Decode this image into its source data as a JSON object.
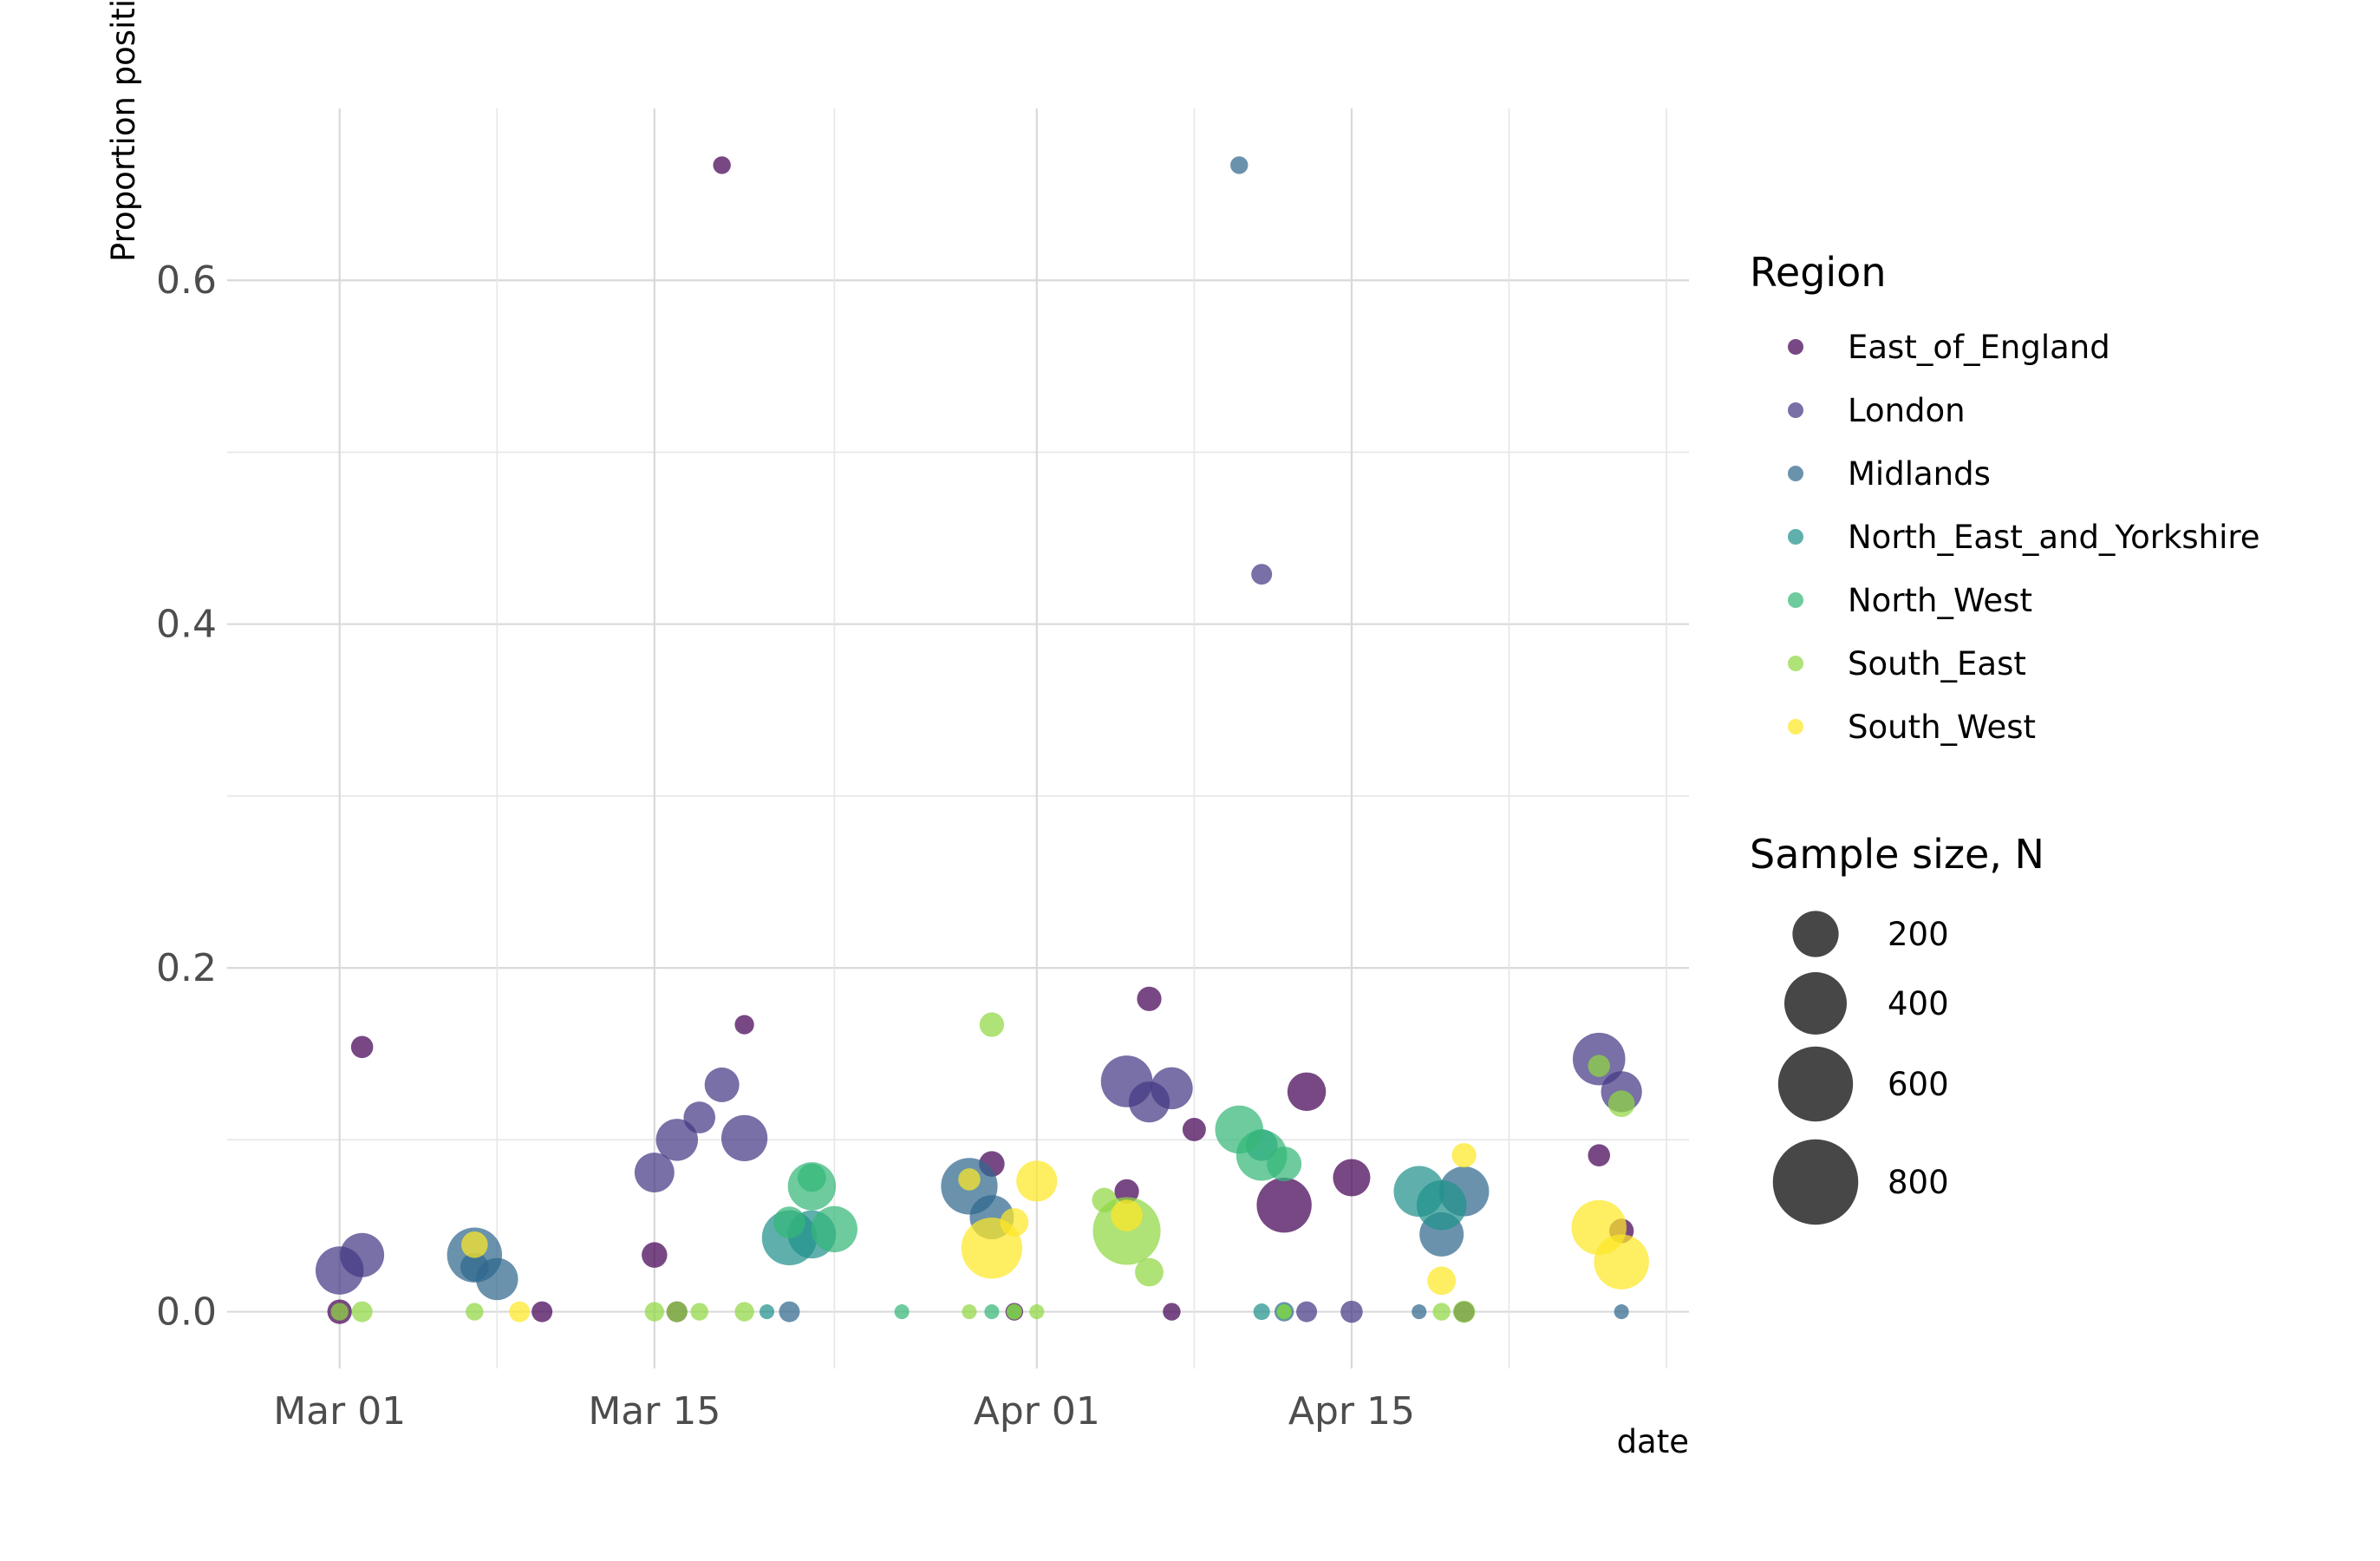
{
  "chart_data": {
    "type": "scatter",
    "xlabel": "date",
    "ylabel": "Proportion positive",
    "xlim": [
      "2020-02-25",
      "2020-04-30"
    ],
    "ylim": [
      -0.033,
      0.7
    ],
    "x_ticks": [
      {
        "date": "2020-03-01",
        "label": "Mar 01"
      },
      {
        "date": "2020-03-15",
        "label": "Mar 15"
      },
      {
        "date": "2020-04-01",
        "label": "Apr 01"
      },
      {
        "date": "2020-04-15",
        "label": "Apr 15"
      }
    ],
    "x_minor_ticks": [
      "2020-03-08",
      "2020-03-23",
      "2020-04-08",
      "2020-04-22",
      "2020-04-29"
    ],
    "y_ticks": [
      0.0,
      0.2,
      0.4,
      0.6
    ],
    "y_tick_labels": [
      "0.0",
      "0.2",
      "0.4",
      "0.6"
    ],
    "y_minor_ticks": [
      0.1,
      0.3,
      0.5
    ],
    "grid": true,
    "legend_placement": "right",
    "color_legend": {
      "title": "Region",
      "entries": [
        {
          "name": "East_of_England",
          "color": "#440154"
        },
        {
          "name": "London",
          "color": "#443983"
        },
        {
          "name": "Midlands",
          "color": "#31688e"
        },
        {
          "name": "North_East_and_Yorkshire",
          "color": "#21918c"
        },
        {
          "name": "North_West",
          "color": "#35b779"
        },
        {
          "name": "South_East",
          "color": "#90d743"
        },
        {
          "name": "South_West",
          "color": "#fde725"
        }
      ]
    },
    "size_legend": {
      "title": "Sample size, N",
      "entries": [
        {
          "label": "200",
          "n": 200
        },
        {
          "label": "400",
          "n": 400
        },
        {
          "label": "600",
          "n": 600
        },
        {
          "label": "800",
          "n": 800
        }
      ]
    },
    "series": [
      {
        "name": "East_of_England",
        "points": [
          {
            "x": "2020-03-01",
            "y": 0.0,
            "n": 40
          },
          {
            "x": "2020-03-02",
            "y": 0.154,
            "n": 30
          },
          {
            "x": "2020-03-10",
            "y": 0.0,
            "n": 25
          },
          {
            "x": "2020-03-15",
            "y": 0.033,
            "n": 45
          },
          {
            "x": "2020-03-16",
            "y": 0.0,
            "n": 25
          },
          {
            "x": "2020-03-18",
            "y": 0.667,
            "n": 15
          },
          {
            "x": "2020-03-19",
            "y": 0.167,
            "n": 20
          },
          {
            "x": "2020-03-30",
            "y": 0.086,
            "n": 45
          },
          {
            "x": "2020-03-31",
            "y": 0.0,
            "n": 15
          },
          {
            "x": "2020-04-05",
            "y": 0.07,
            "n": 40
          },
          {
            "x": "2020-04-06",
            "y": 0.182,
            "n": 40
          },
          {
            "x": "2020-04-07",
            "y": 0.0,
            "n": 15
          },
          {
            "x": "2020-04-08",
            "y": 0.106,
            "n": 35
          },
          {
            "x": "2020-04-12",
            "y": 0.062,
            "n": 300
          },
          {
            "x": "2020-04-13",
            "y": 0.128,
            "n": 130
          },
          {
            "x": "2020-04-15",
            "y": 0.078,
            "n": 120
          },
          {
            "x": "2020-04-20",
            "y": 0.0,
            "n": 25
          },
          {
            "x": "2020-04-26",
            "y": 0.091,
            "n": 30
          },
          {
            "x": "2020-04-27",
            "y": 0.047,
            "n": 40
          }
        ]
      },
      {
        "name": "London",
        "points": [
          {
            "x": "2020-03-01",
            "y": 0.024,
            "n": 220
          },
          {
            "x": "2020-03-02",
            "y": 0.033,
            "n": 180
          },
          {
            "x": "2020-03-15",
            "y": 0.081,
            "n": 140
          },
          {
            "x": "2020-03-16",
            "y": 0.1,
            "n": 160
          },
          {
            "x": "2020-03-17",
            "y": 0.113,
            "n": 80
          },
          {
            "x": "2020-03-18",
            "y": 0.132,
            "n": 100
          },
          {
            "x": "2020-03-19",
            "y": 0.101,
            "n": 200
          },
          {
            "x": "2020-04-05",
            "y": 0.134,
            "n": 260
          },
          {
            "x": "2020-04-06",
            "y": 0.122,
            "n": 150
          },
          {
            "x": "2020-04-07",
            "y": 0.13,
            "n": 160
          },
          {
            "x": "2020-04-11",
            "y": 0.429,
            "n": 25
          },
          {
            "x": "2020-04-13",
            "y": 0.0,
            "n": 25
          },
          {
            "x": "2020-04-15",
            "y": 0.0,
            "n": 30
          },
          {
            "x": "2020-04-26",
            "y": 0.147,
            "n": 270
          },
          {
            "x": "2020-04-27",
            "y": 0.128,
            "n": 150
          }
        ]
      },
      {
        "name": "Midlands",
        "points": [
          {
            "x": "2020-03-07",
            "y": 0.033,
            "n": 300
          },
          {
            "x": "2020-03-07",
            "y": 0.026,
            "n": 60
          },
          {
            "x": "2020-03-08",
            "y": 0.019,
            "n": 160
          },
          {
            "x": "2020-03-21",
            "y": 0.0,
            "n": 25
          },
          {
            "x": "2020-03-29",
            "y": 0.073,
            "n": 320
          },
          {
            "x": "2020-03-30",
            "y": 0.055,
            "n": 180
          },
          {
            "x": "2020-04-10",
            "y": 0.667,
            "n": 15
          },
          {
            "x": "2020-04-12",
            "y": 0.0,
            "n": 20
          },
          {
            "x": "2020-04-18",
            "y": 0.0,
            "n": 8
          },
          {
            "x": "2020-04-19",
            "y": 0.045,
            "n": 180
          },
          {
            "x": "2020-04-20",
            "y": 0.07,
            "n": 240
          },
          {
            "x": "2020-04-27",
            "y": 0.0,
            "n": 8
          }
        ]
      },
      {
        "name": "North_East_and_Yorkshire",
        "points": [
          {
            "x": "2020-03-20",
            "y": 0.0,
            "n": 8
          },
          {
            "x": "2020-03-21",
            "y": 0.043,
            "n": 300
          },
          {
            "x": "2020-03-22",
            "y": 0.045,
            "n": 220
          },
          {
            "x": "2020-04-11",
            "y": 0.0,
            "n": 12
          },
          {
            "x": "2020-04-11",
            "y": 0.097,
            "n": 80
          },
          {
            "x": "2020-04-18",
            "y": 0.07,
            "n": 250
          },
          {
            "x": "2020-04-19",
            "y": 0.062,
            "n": 240
          }
        ]
      },
      {
        "name": "North_West",
        "points": [
          {
            "x": "2020-03-21",
            "y": 0.052,
            "n": 80
          },
          {
            "x": "2020-03-22",
            "y": 0.073,
            "n": 220
          },
          {
            "x": "2020-03-22",
            "y": 0.078,
            "n": 60
          },
          {
            "x": "2020-03-23",
            "y": 0.048,
            "n": 200
          },
          {
            "x": "2020-03-26",
            "y": 0.0,
            "n": 8
          },
          {
            "x": "2020-03-30",
            "y": 0.0,
            "n": 8
          },
          {
            "x": "2020-03-31",
            "y": 0.0,
            "n": 8
          },
          {
            "x": "2020-04-10",
            "y": 0.106,
            "n": 220
          },
          {
            "x": "2020-04-11",
            "y": 0.091,
            "n": 250
          },
          {
            "x": "2020-04-12",
            "y": 0.086,
            "n": 100
          },
          {
            "x": "2020-04-12",
            "y": 0.0,
            "n": 10
          }
        ]
      },
      {
        "name": "South_East",
        "points": [
          {
            "x": "2020-03-01",
            "y": 0.0,
            "n": 15
          },
          {
            "x": "2020-03-02",
            "y": 0.0,
            "n": 25
          },
          {
            "x": "2020-03-07",
            "y": 0.0,
            "n": 15
          },
          {
            "x": "2020-03-15",
            "y": 0.0,
            "n": 20
          },
          {
            "x": "2020-03-16",
            "y": 0.0,
            "n": 25
          },
          {
            "x": "2020-03-17",
            "y": 0.0,
            "n": 15
          },
          {
            "x": "2020-03-19",
            "y": 0.0,
            "n": 20
          },
          {
            "x": "2020-03-29",
            "y": 0.0,
            "n": 8
          },
          {
            "x": "2020-03-30",
            "y": 0.167,
            "n": 40
          },
          {
            "x": "2020-03-31",
            "y": 0.0,
            "n": 10
          },
          {
            "x": "2020-04-01",
            "y": 0.0,
            "n": 8
          },
          {
            "x": "2020-04-04",
            "y": 0.065,
            "n": 40
          },
          {
            "x": "2020-04-05",
            "y": 0.047,
            "n": 480
          },
          {
            "x": "2020-04-06",
            "y": 0.023,
            "n": 60
          },
          {
            "x": "2020-04-12",
            "y": 0.0,
            "n": 8
          },
          {
            "x": "2020-04-19",
            "y": 0.0,
            "n": 15
          },
          {
            "x": "2020-04-20",
            "y": 0.0,
            "n": 30
          },
          {
            "x": "2020-04-26",
            "y": 0.143,
            "n": 30
          },
          {
            "x": "2020-04-27",
            "y": 0.121,
            "n": 50
          }
        ]
      },
      {
        "name": "South_West",
        "points": [
          {
            "x": "2020-03-07",
            "y": 0.039,
            "n": 50
          },
          {
            "x": "2020-03-09",
            "y": 0.0,
            "n": 25
          },
          {
            "x": "2020-03-29",
            "y": 0.077,
            "n": 30
          },
          {
            "x": "2020-03-30",
            "y": 0.037,
            "n": 380
          },
          {
            "x": "2020-03-31",
            "y": 0.052,
            "n": 60
          },
          {
            "x": "2020-04-01",
            "y": 0.076,
            "n": 150
          },
          {
            "x": "2020-04-05",
            "y": 0.056,
            "n": 80
          },
          {
            "x": "2020-04-19",
            "y": 0.018,
            "n": 60
          },
          {
            "x": "2020-04-20",
            "y": 0.091,
            "n": 40
          },
          {
            "x": "2020-04-26",
            "y": 0.049,
            "n": 300
          },
          {
            "x": "2020-04-27",
            "y": 0.029,
            "n": 300
          }
        ]
      }
    ]
  }
}
